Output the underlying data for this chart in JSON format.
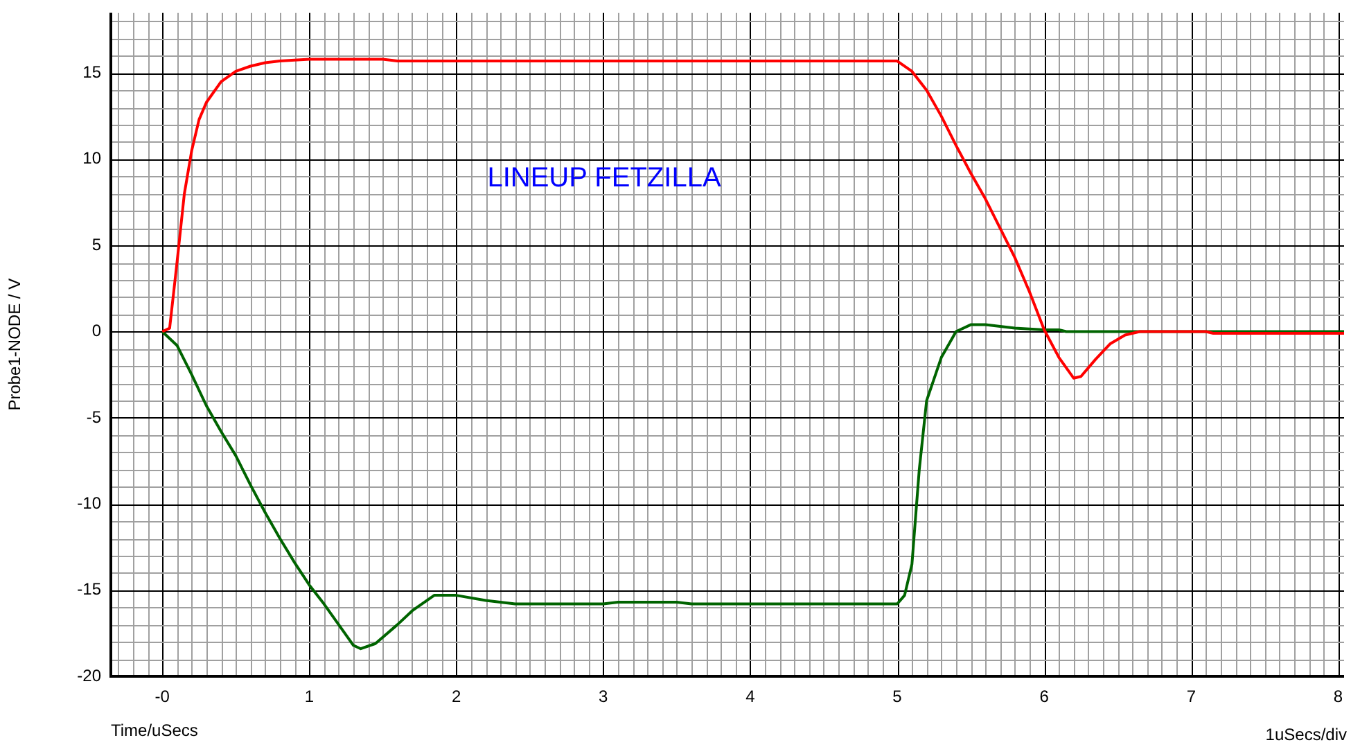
{
  "chart_data": {
    "type": "line",
    "xlabel": "Time/uSecs",
    "ylabel": "Probe1-NODE / V",
    "annotations": [
      "LINEUP FETZILLA",
      "1uSecs/div"
    ],
    "xlim": [
      -0.35,
      8.04
    ],
    "ylim": [
      -20,
      18.5
    ],
    "xticks": [
      {
        "value": 0,
        "label": "-0"
      },
      1,
      2,
      3,
      4,
      5,
      6,
      7,
      8
    ],
    "yticks": [
      -20,
      -15,
      -10,
      -5,
      0,
      5,
      10,
      15
    ],
    "grid": true,
    "legend": false,
    "marker": "none",
    "line_style": "solid",
    "series": [
      {
        "color": "#ff0000",
        "x": [
          0,
          0.05,
          0.1,
          0.15,
          0.2,
          0.25,
          0.3,
          0.4,
          0.5,
          0.6,
          0.7,
          0.8,
          1.0,
          1.5,
          1.6,
          5.0,
          5.1,
          5.2,
          5.3,
          5.4,
          5.5,
          5.6,
          5.7,
          5.8,
          5.9,
          6.0,
          6.1,
          6.2,
          6.25,
          6.35,
          6.45,
          6.55,
          6.65,
          7.1,
          7.15,
          8.04
        ],
        "values": [
          0,
          0.2,
          4,
          8,
          10.5,
          12.3,
          13.3,
          14.5,
          15.1,
          15.4,
          15.6,
          15.7,
          15.8,
          15.8,
          15.7,
          15.7,
          15.1,
          14,
          12.5,
          10.8,
          9.2,
          7.7,
          6,
          4.3,
          2.3,
          0.1,
          -1.5,
          -2.7,
          -2.6,
          -1.6,
          -0.7,
          -0.2,
          0,
          0,
          -0.1,
          -0.1
        ]
      },
      {
        "color": "#006400",
        "x": [
          0,
          0.1,
          0.2,
          0.3,
          0.4,
          0.5,
          0.6,
          0.7,
          0.8,
          0.9,
          1.0,
          1.1,
          1.2,
          1.3,
          1.35,
          1.45,
          1.6,
          1.7,
          1.85,
          2.0,
          2.2,
          2.4,
          3.0,
          3.1,
          3.5,
          3.6,
          5.0,
          5.05,
          5.1,
          5.15,
          5.2,
          5.3,
          5.4,
          5.5,
          5.6,
          5.8,
          6.0,
          6.1,
          6.15,
          8.04
        ],
        "values": [
          0,
          -0.8,
          -2.5,
          -4.3,
          -5.8,
          -7.2,
          -8.9,
          -10.5,
          -12.0,
          -13.4,
          -14.7,
          -15.8,
          -17.0,
          -18.2,
          -18.4,
          -18.1,
          -17.0,
          -16.2,
          -15.3,
          -15.3,
          -15.6,
          -15.8,
          -15.8,
          -15.7,
          -15.7,
          -15.8,
          -15.8,
          -15.3,
          -13.5,
          -8,
          -4,
          -1.5,
          0,
          0.4,
          0.4,
          0.2,
          0.1,
          0.1,
          0,
          0
        ]
      }
    ]
  }
}
